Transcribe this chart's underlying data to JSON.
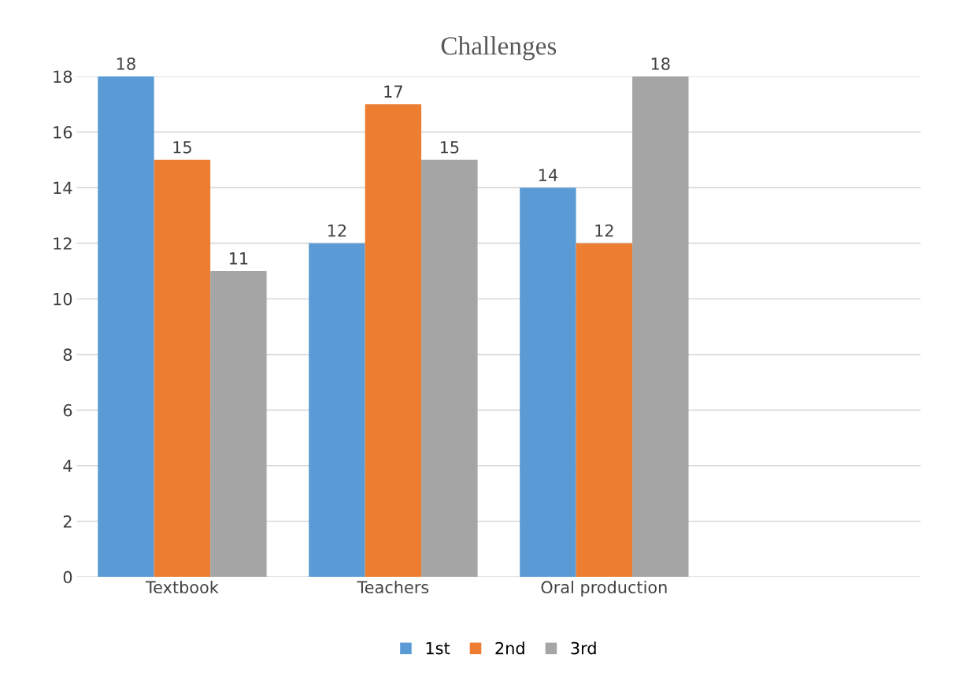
{
  "chart_data": {
    "type": "bar",
    "title": "Challenges",
    "categories": [
      "Textbook",
      "Teachers",
      "Oral production",
      null
    ],
    "series": [
      {
        "name": "1st",
        "color": "#5b9bd5",
        "values": [
          18,
          12,
          14,
          null
        ]
      },
      {
        "name": "2nd",
        "color": "#ed7d31",
        "values": [
          15,
          17,
          12,
          null
        ]
      },
      {
        "name": "3rd",
        "color": "#a5a5a5",
        "values": [
          11,
          15,
          18,
          null
        ]
      }
    ],
    "ylim": [
      0,
      18
    ],
    "yticks": [
      0,
      2,
      4,
      6,
      8,
      10,
      12,
      14,
      16,
      18
    ],
    "grid": "y",
    "legend": "bottom",
    "data_labels": true
  }
}
